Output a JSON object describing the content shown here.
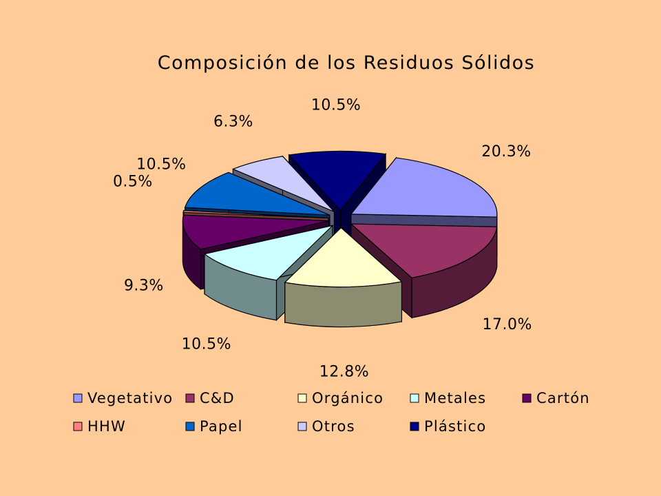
{
  "chart_data": {
    "type": "pie",
    "title": "Composición de los Residuos Sólidos",
    "style": "3d-exploded",
    "legend_position": "bottom",
    "slices": [
      {
        "name": "Vegetativo",
        "value": 20.3,
        "label": "20.3%",
        "color": "#9999FF"
      },
      {
        "name": "C&D",
        "value": 17.0,
        "label": "17.0%",
        "color": "#993366"
      },
      {
        "name": "Orgánico",
        "value": 12.8,
        "label": "12.8%",
        "color": "#FFFFCC"
      },
      {
        "name": "Metales",
        "value": 10.5,
        "label": "10.5%",
        "color": "#CCFFFF"
      },
      {
        "name": "Cartón",
        "value": 9.3,
        "label": "9.3%",
        "color": "#660066"
      },
      {
        "name": "HHW",
        "value": 0.5,
        "label": "0.5%",
        "color": "#FF8080"
      },
      {
        "name": "Papel",
        "value": 10.5,
        "label": "10.5%",
        "color": "#0066CC"
      },
      {
        "name": "Otros",
        "value": 6.3,
        "label": "6.3%",
        "color": "#CCCCFF"
      },
      {
        "name": "Plástico",
        "value": 10.5,
        "label": "10.5%",
        "color": "#000080"
      }
    ]
  }
}
